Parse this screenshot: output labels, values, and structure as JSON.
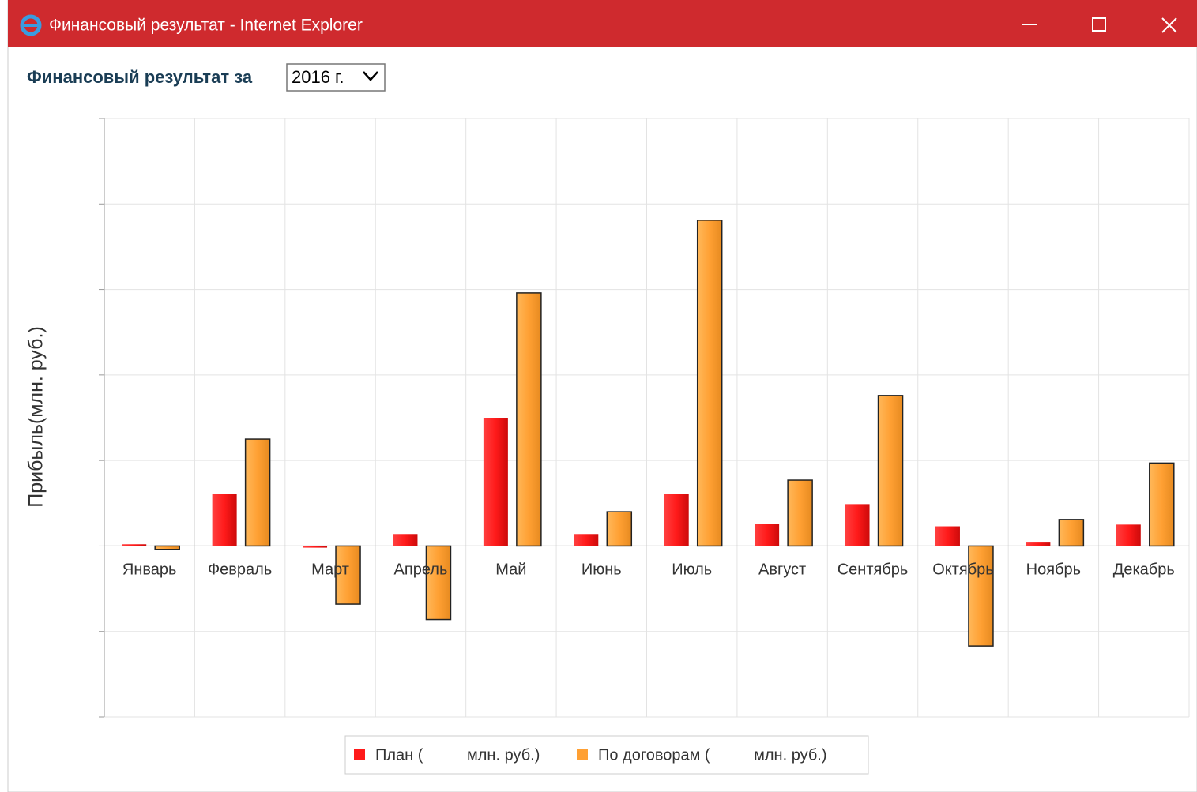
{
  "window": {
    "title": "Финансовый результат - Internet Explorer"
  },
  "header": {
    "label": "Финансовый результат за",
    "year": "2016 г."
  },
  "chart_data": {
    "type": "bar",
    "ylabel": "Прибыль(млн. руб.)",
    "categories": [
      "Январь",
      "Февраль",
      "Март",
      "Апрель",
      "Май",
      "Июнь",
      "Июль",
      "Август",
      "Сентябрь",
      "Октябрь",
      "Ноябрь",
      "Декабрь"
    ],
    "series": [
      {
        "name": "План (          млн. руб.)",
        "color": "#ff1a1a",
        "values": [
          0.02,
          0.61,
          -0.02,
          0.14,
          1.5,
          0.14,
          0.61,
          0.26,
          0.49,
          0.23,
          0.04,
          0.25
        ]
      },
      {
        "name": "По договорам (          млн. руб.)",
        "color": "#ffa033",
        "values": [
          -0.04,
          1.25,
          -0.68,
          -0.86,
          2.96,
          0.4,
          3.81,
          0.77,
          1.76,
          -1.17,
          0.31,
          0.97
        ]
      }
    ],
    "ylim": [
      -2,
      5
    ],
    "yticks": [
      -2,
      -1,
      0,
      1,
      2,
      3,
      4,
      5
    ],
    "grid": true
  }
}
